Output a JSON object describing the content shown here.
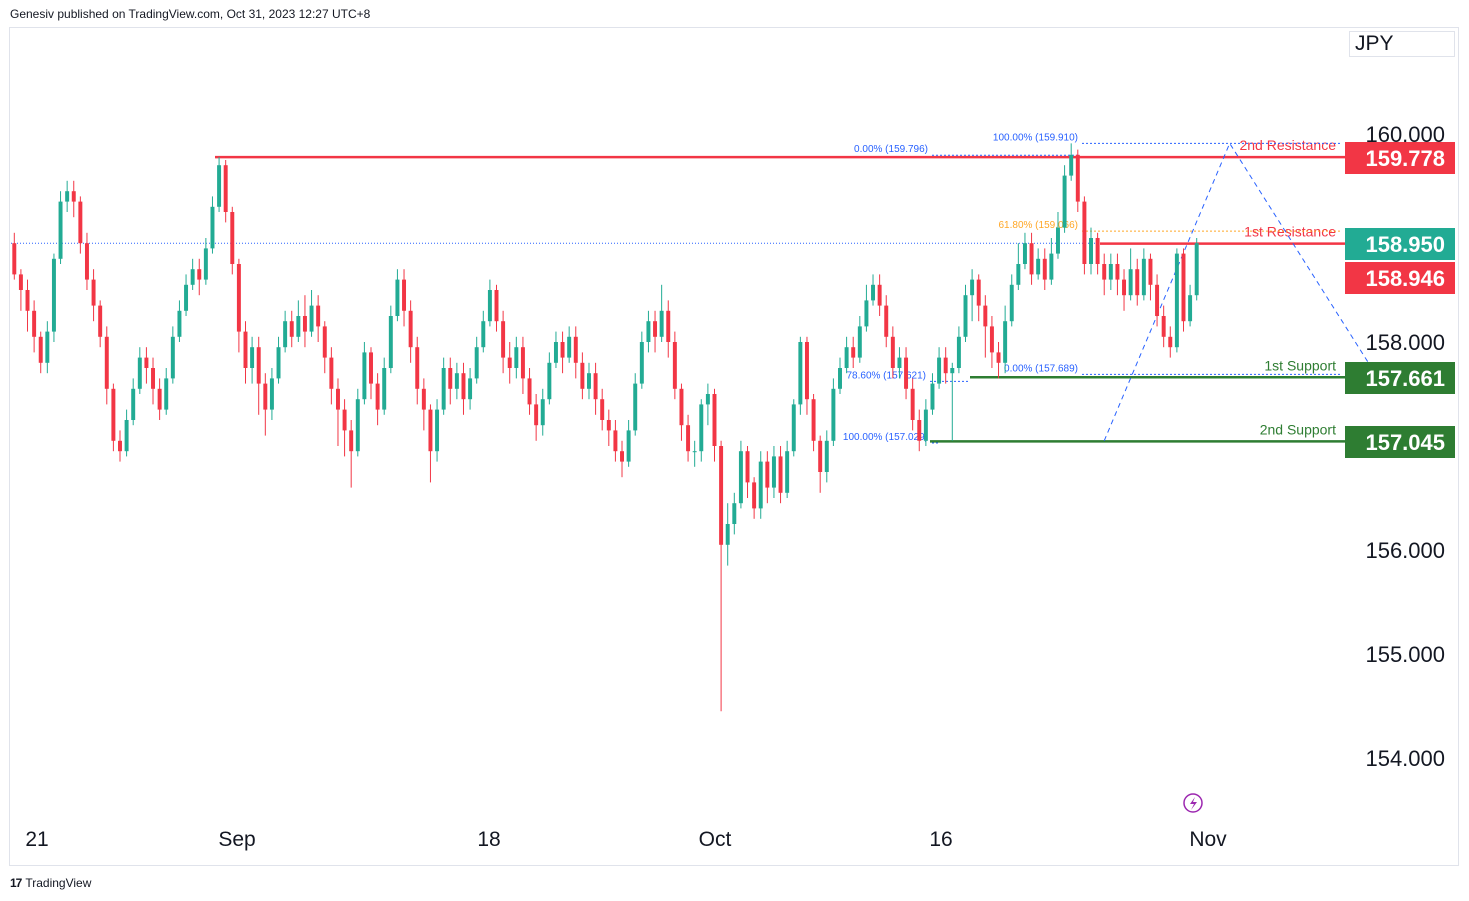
{
  "header": {
    "published_text": "Genesiv published on TradingView.com, Oct 31, 2023 12:27 UTC+8"
  },
  "currency": "JPY",
  "footer": {
    "brand": "TradingView",
    "logo_icon": "tradingview-logo-icon"
  },
  "colors": {
    "up": "#22ab94",
    "down": "#f23645",
    "resistance": "#f23645",
    "support": "#2e7d32",
    "fib": "#2962ff",
    "fib_orange": "#ffa726",
    "last_price": "#22ab94"
  },
  "chart_data": {
    "type": "candlestick",
    "symbol_currency": "JPY",
    "ylim": [
      153.6,
      160.6
    ],
    "y_ticks": [
      {
        "label": "160.000",
        "value": 160.0
      },
      {
        "label": "158.000",
        "value": 158.0
      },
      {
        "label": "156.000",
        "value": 156.0
      },
      {
        "label": "155.000",
        "value": 155.0
      },
      {
        "label": "154.000",
        "value": 154.0
      }
    ],
    "x_ticks": [
      "21",
      "Sep",
      "18",
      "Oct",
      "16",
      "Nov"
    ],
    "price_tags": [
      {
        "label": "159.778",
        "value": 159.778,
        "color": "#f23645"
      },
      {
        "label": "158.950",
        "value": 158.95,
        "color": "#22ab94"
      },
      {
        "label": "158.946",
        "value": 158.946,
        "color": "#f23645"
      },
      {
        "label": "157.661",
        "value": 157.661,
        "color": "#2e7d32"
      },
      {
        "label": "157.045",
        "value": 157.045,
        "color": "#2e7d32"
      }
    ],
    "levels": [
      {
        "name": "2nd Resistance",
        "value": 159.778,
        "kind": "resistance"
      },
      {
        "name": "1st Resistance",
        "value": 158.946,
        "kind": "resistance"
      },
      {
        "name": "1st Support",
        "value": 157.661,
        "kind": "support"
      },
      {
        "name": "2nd Support",
        "value": 157.045,
        "kind": "support"
      }
    ],
    "fib_labels": [
      {
        "text": "100.00% (159.910)",
        "value": 159.91,
        "color": "#2962ff"
      },
      {
        "text": "0.00% (159.796)",
        "value": 159.796,
        "color": "#2962ff"
      },
      {
        "text": "61.80% (159.066)",
        "value": 159.066,
        "color": "#ffa726"
      },
      {
        "text": "0.00% (157.689)",
        "value": 157.689,
        "color": "#2962ff"
      },
      {
        "text": "78.60% (157.621)",
        "value": 157.621,
        "color": "#2962ff"
      },
      {
        "text": "100.00% (157.029)",
        "value": 157.029,
        "color": "#2962ff"
      }
    ],
    "last_price": 158.95,
    "candles": [
      [
        158.95,
        158.65,
        159.05,
        158.6
      ],
      [
        158.65,
        158.5,
        158.7,
        158.3
      ],
      [
        158.5,
        158.3,
        158.6,
        158.1
      ],
      [
        158.3,
        158.05,
        158.4,
        157.9
      ],
      [
        158.05,
        157.8,
        158.1,
        157.7
      ],
      [
        157.8,
        158.1,
        158.2,
        157.7
      ],
      [
        158.1,
        158.8,
        158.85,
        158.0
      ],
      [
        158.8,
        159.35,
        159.45,
        158.75
      ],
      [
        159.35,
        159.45,
        159.55,
        159.25
      ],
      [
        159.45,
        159.35,
        159.55,
        159.2
      ],
      [
        159.35,
        158.95,
        159.4,
        158.85
      ],
      [
        158.95,
        158.6,
        159.05,
        158.5
      ],
      [
        158.6,
        158.35,
        158.7,
        158.2
      ],
      [
        158.35,
        158.05,
        158.4,
        157.95
      ],
      [
        158.05,
        157.55,
        158.15,
        157.4
      ],
      [
        157.55,
        157.05,
        157.6,
        156.95
      ],
      [
        157.05,
        156.95,
        157.15,
        156.85
      ],
      [
        156.95,
        157.25,
        157.35,
        156.9
      ],
      [
        157.25,
        157.55,
        157.65,
        157.2
      ],
      [
        157.55,
        157.85,
        157.95,
        157.5
      ],
      [
        157.85,
        157.75,
        157.95,
        157.6
      ],
      [
        157.75,
        157.55,
        157.85,
        157.4
      ],
      [
        157.55,
        157.35,
        157.65,
        157.25
      ],
      [
        157.35,
        157.65,
        157.75,
        157.3
      ],
      [
        157.65,
        158.05,
        158.15,
        157.6
      ],
      [
        158.05,
        158.3,
        158.4,
        158.0
      ],
      [
        158.3,
        158.55,
        158.65,
        158.25
      ],
      [
        158.55,
        158.7,
        158.8,
        158.5
      ],
      [
        158.7,
        158.6,
        158.8,
        158.45
      ],
      [
        158.6,
        158.9,
        159.0,
        158.55
      ],
      [
        158.9,
        159.3,
        159.4,
        158.85
      ],
      [
        159.3,
        159.7,
        159.78,
        159.25
      ],
      [
        159.7,
        159.25,
        159.75,
        159.15
      ],
      [
        159.25,
        158.75,
        159.3,
        158.65
      ],
      [
        158.75,
        158.1,
        158.8,
        157.9
      ],
      [
        158.1,
        157.75,
        158.2,
        157.6
      ],
      [
        157.75,
        157.95,
        158.05,
        157.6
      ],
      [
        157.95,
        157.6,
        158.05,
        157.3
      ],
      [
        157.6,
        157.35,
        157.7,
        157.1
      ],
      [
        157.35,
        157.65,
        157.75,
        157.25
      ],
      [
        157.65,
        157.95,
        158.05,
        157.6
      ],
      [
        157.95,
        158.2,
        158.3,
        157.9
      ],
      [
        158.2,
        158.05,
        158.3,
        157.95
      ],
      [
        158.05,
        158.25,
        158.4,
        158.0
      ],
      [
        158.25,
        158.1,
        158.45,
        157.95
      ],
      [
        158.1,
        158.35,
        158.5,
        158.05
      ],
      [
        158.35,
        158.15,
        158.45,
        158.0
      ],
      [
        158.15,
        157.85,
        158.2,
        157.7
      ],
      [
        157.85,
        157.55,
        157.95,
        157.4
      ],
      [
        157.55,
        157.35,
        157.65,
        157.0
      ],
      [
        157.35,
        157.15,
        157.45,
        156.9
      ],
      [
        157.15,
        156.95,
        157.25,
        156.6
      ],
      [
        156.95,
        157.45,
        157.55,
        156.9
      ],
      [
        157.45,
        157.9,
        158.0,
        157.4
      ],
      [
        157.9,
        157.6,
        157.95,
        157.45
      ],
      [
        157.6,
        157.35,
        157.7,
        157.2
      ],
      [
        157.35,
        157.75,
        157.85,
        157.3
      ],
      [
        157.75,
        158.25,
        158.35,
        157.7
      ],
      [
        158.25,
        158.6,
        158.7,
        158.2
      ],
      [
        158.6,
        158.3,
        158.7,
        158.15
      ],
      [
        158.3,
        157.95,
        158.4,
        157.8
      ],
      [
        157.95,
        157.55,
        158.05,
        157.4
      ],
      [
        157.55,
        157.35,
        157.65,
        157.15
      ],
      [
        157.35,
        156.95,
        157.4,
        156.65
      ],
      [
        156.95,
        157.35,
        157.45,
        156.85
      ],
      [
        157.35,
        157.75,
        157.85,
        157.3
      ],
      [
        157.75,
        157.55,
        157.85,
        157.4
      ],
      [
        157.55,
        157.7,
        157.8,
        157.45
      ],
      [
        157.7,
        157.45,
        157.8,
        157.3
      ],
      [
        157.45,
        157.65,
        157.75,
        157.35
      ],
      [
        157.65,
        157.95,
        158.05,
        157.6
      ],
      [
        157.95,
        158.2,
        158.3,
        157.9
      ],
      [
        158.2,
        158.5,
        158.6,
        158.15
      ],
      [
        158.5,
        158.2,
        158.55,
        158.1
      ],
      [
        158.2,
        157.85,
        158.3,
        157.7
      ],
      [
        157.85,
        157.75,
        158.0,
        157.6
      ],
      [
        157.75,
        157.95,
        158.05,
        157.65
      ],
      [
        157.95,
        157.65,
        158.05,
        157.5
      ],
      [
        157.65,
        157.4,
        157.75,
        157.3
      ],
      [
        157.4,
        157.2,
        157.5,
        157.05
      ],
      [
        157.2,
        157.45,
        157.55,
        157.1
      ],
      [
        157.45,
        157.8,
        157.9,
        157.4
      ],
      [
        157.8,
        158.0,
        158.1,
        157.75
      ],
      [
        158.0,
        157.85,
        158.1,
        157.7
      ],
      [
        157.85,
        158.05,
        158.15,
        157.8
      ],
      [
        158.05,
        157.8,
        158.15,
        157.65
      ],
      [
        157.8,
        157.55,
        157.9,
        157.45
      ],
      [
        157.55,
        157.7,
        157.8,
        157.45
      ],
      [
        157.7,
        157.45,
        157.8,
        157.3
      ],
      [
        157.45,
        157.25,
        157.55,
        157.15
      ],
      [
        157.25,
        157.15,
        157.35,
        157.0
      ],
      [
        157.15,
        156.95,
        157.25,
        156.85
      ],
      [
        156.95,
        156.85,
        157.05,
        156.7
      ],
      [
        156.85,
        157.15,
        157.25,
        156.8
      ],
      [
        157.15,
        157.6,
        157.7,
        157.1
      ],
      [
        157.6,
        158.0,
        158.1,
        157.55
      ],
      [
        158.0,
        158.2,
        158.3,
        157.9
      ],
      [
        158.2,
        158.05,
        158.3,
        157.9
      ],
      [
        158.05,
        158.3,
        158.55,
        158.0
      ],
      [
        158.3,
        158.0,
        158.4,
        157.85
      ],
      [
        158.0,
        157.55,
        158.1,
        157.45
      ],
      [
        157.55,
        157.2,
        157.6,
        157.05
      ],
      [
        157.2,
        156.95,
        157.3,
        156.85
      ],
      [
        156.95,
        156.95,
        157.05,
        156.8
      ],
      [
        156.95,
        157.4,
        157.45,
        156.85
      ],
      [
        157.4,
        157.5,
        157.6,
        157.2
      ],
      [
        157.5,
        157.0,
        157.55,
        156.85
      ],
      [
        157.0,
        156.05,
        157.05,
        154.45
      ],
      [
        156.05,
        156.25,
        156.45,
        155.85
      ],
      [
        156.25,
        156.45,
        156.55,
        156.15
      ],
      [
        156.45,
        156.95,
        157.05,
        156.4
      ],
      [
        156.95,
        156.65,
        157.0,
        156.5
      ],
      [
        156.65,
        156.4,
        156.7,
        156.3
      ],
      [
        156.4,
        156.85,
        156.95,
        156.3
      ],
      [
        156.85,
        156.6,
        156.95,
        156.45
      ],
      [
        156.6,
        156.9,
        157.0,
        156.5
      ],
      [
        156.9,
        156.55,
        157.0,
        156.45
      ],
      [
        156.55,
        156.95,
        157.05,
        156.5
      ],
      [
        156.95,
        157.4,
        157.45,
        156.9
      ],
      [
        157.4,
        158.0,
        158.05,
        157.3
      ],
      [
        158.0,
        157.45,
        158.05,
        157.3
      ],
      [
        157.45,
        157.05,
        157.5,
        156.95
      ],
      [
        157.05,
        156.75,
        157.1,
        156.55
      ],
      [
        156.75,
        157.05,
        157.15,
        156.65
      ],
      [
        157.05,
        157.55,
        157.65,
        157.0
      ],
      [
        157.55,
        157.75,
        157.85,
        157.5
      ],
      [
        157.75,
        157.95,
        158.05,
        157.7
      ],
      [
        157.95,
        157.85,
        158.05,
        157.75
      ],
      [
        157.85,
        158.15,
        158.25,
        157.8
      ],
      [
        158.15,
        158.4,
        158.55,
        158.1
      ],
      [
        158.4,
        158.55,
        158.65,
        158.35
      ],
      [
        158.55,
        158.35,
        158.65,
        158.25
      ],
      [
        158.35,
        158.05,
        158.45,
        157.95
      ],
      [
        158.05,
        157.75,
        158.15,
        157.65
      ],
      [
        157.75,
        157.85,
        157.95,
        157.65
      ],
      [
        157.85,
        157.55,
        157.95,
        157.45
      ],
      [
        157.55,
        157.25,
        157.65,
        157.15
      ],
      [
        157.25,
        157.05,
        157.35,
        156.95
      ],
      [
        157.05,
        157.35,
        157.45,
        157.0
      ],
      [
        157.35,
        157.6,
        157.7,
        157.3
      ],
      [
        157.6,
        157.85,
        157.95,
        157.55
      ],
      [
        157.85,
        157.7,
        157.95,
        157.6
      ],
      [
        157.7,
        157.75,
        157.8,
        157.05
      ],
      [
        157.75,
        158.05,
        158.15,
        157.7
      ],
      [
        158.05,
        158.45,
        158.55,
        158.0
      ],
      [
        158.45,
        158.6,
        158.7,
        158.2
      ],
      [
        158.6,
        158.35,
        158.65,
        158.2
      ],
      [
        158.35,
        158.15,
        158.45,
        157.85
      ],
      [
        158.15,
        157.9,
        158.25,
        157.75
      ],
      [
        157.9,
        157.8,
        158.0,
        157.65
      ],
      [
        157.8,
        158.2,
        158.35,
        157.7
      ],
      [
        158.2,
        158.55,
        158.65,
        158.15
      ],
      [
        158.55,
        158.75,
        158.95,
        158.5
      ],
      [
        158.75,
        158.95,
        159.05,
        158.7
      ],
      [
        158.95,
        158.65,
        159.05,
        158.55
      ],
      [
        158.65,
        158.8,
        158.9,
        158.6
      ],
      [
        158.8,
        158.6,
        158.9,
        158.5
      ],
      [
        158.6,
        158.85,
        159.0,
        158.55
      ],
      [
        158.85,
        159.1,
        159.25,
        158.8
      ],
      [
        159.1,
        159.6,
        159.7,
        159.05
      ],
      [
        159.6,
        159.8,
        159.91,
        159.55
      ],
      [
        159.8,
        159.35,
        159.85,
        159.25
      ],
      [
        159.35,
        158.75,
        159.4,
        158.65
      ],
      [
        158.75,
        159.0,
        159.1,
        158.65
      ],
      [
        159.0,
        158.75,
        159.05,
        158.65
      ],
      [
        158.75,
        158.6,
        158.85,
        158.45
      ],
      [
        158.6,
        158.75,
        158.85,
        158.5
      ],
      [
        158.75,
        158.6,
        158.85,
        158.45
      ],
      [
        158.6,
        158.45,
        158.7,
        158.3
      ],
      [
        158.45,
        158.7,
        158.9,
        158.4
      ],
      [
        158.7,
        158.45,
        158.8,
        158.35
      ],
      [
        158.45,
        158.8,
        158.9,
        158.4
      ],
      [
        158.8,
        158.55,
        158.85,
        158.4
      ],
      [
        158.55,
        158.25,
        158.65,
        158.15
      ],
      [
        158.25,
        158.05,
        158.35,
        157.95
      ],
      [
        158.05,
        157.95,
        158.15,
        157.85
      ],
      [
        157.95,
        158.85,
        158.9,
        157.9
      ],
      [
        158.85,
        158.2,
        158.9,
        158.1
      ],
      [
        158.2,
        158.45,
        158.55,
        158.15
      ],
      [
        158.45,
        158.95,
        159.0,
        158.4
      ]
    ]
  }
}
